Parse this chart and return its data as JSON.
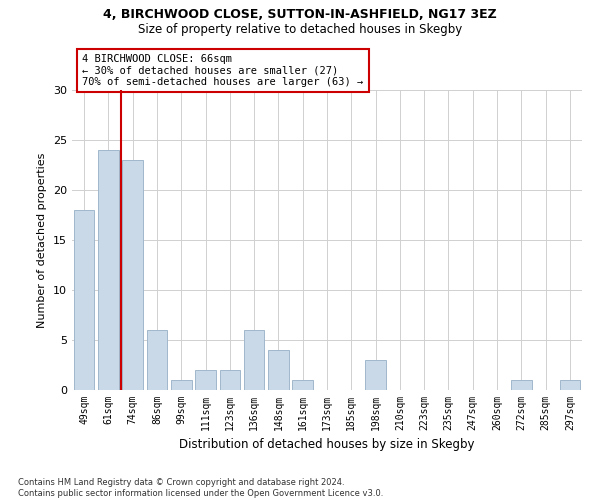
{
  "title1": "4, BIRCHWOOD CLOSE, SUTTON-IN-ASHFIELD, NG17 3EZ",
  "title2": "Size of property relative to detached houses in Skegby",
  "xlabel": "Distribution of detached houses by size in Skegby",
  "ylabel": "Number of detached properties",
  "categories": [
    "49sqm",
    "61sqm",
    "74sqm",
    "86sqm",
    "99sqm",
    "111sqm",
    "123sqm",
    "136sqm",
    "148sqm",
    "161sqm",
    "173sqm",
    "185sqm",
    "198sqm",
    "210sqm",
    "223sqm",
    "235sqm",
    "247sqm",
    "260sqm",
    "272sqm",
    "285sqm",
    "297sqm"
  ],
  "values": [
    18,
    24,
    23,
    6,
    1,
    2,
    2,
    6,
    4,
    1,
    0,
    0,
    3,
    0,
    0,
    0,
    0,
    0,
    1,
    0,
    1
  ],
  "bar_color": "#c9d9e8",
  "bar_edge_color": "#a0b8cc",
  "property_line_x": 1.5,
  "annotation_text_line1": "4 BIRCHWOOD CLOSE: 66sqm",
  "annotation_text_line2": "← 30% of detached houses are smaller (27)",
  "annotation_text_line3": "70% of semi-detached houses are larger (63) →",
  "vline_color": "#cc0000",
  "annotation_box_color": "#ffffff",
  "annotation_box_edge": "#cc0000",
  "ylim": [
    0,
    30
  ],
  "yticks": [
    0,
    5,
    10,
    15,
    20,
    25,
    30
  ],
  "background_color": "#ffffff",
  "grid_color": "#d0d0d0",
  "footer_line1": "Contains HM Land Registry data © Crown copyright and database right 2024.",
  "footer_line2": "Contains public sector information licensed under the Open Government Licence v3.0."
}
